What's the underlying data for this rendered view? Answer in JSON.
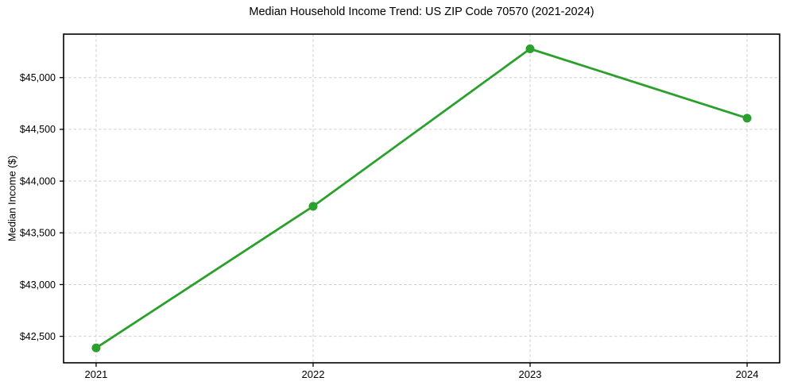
{
  "title": "Median Household Income Trend: US ZIP Code 70570 (2021-2024)",
  "chart_data": {
    "type": "line",
    "title": "Median Household Income Trend: US ZIP Code 70570 (2021-2024)",
    "xlabel": "",
    "ylabel": "Median Income ($)",
    "x": [
      2021,
      2022,
      2023,
      2024
    ],
    "series": [
      {
        "name": "Median household income",
        "values": [
          42388,
          43756,
          45278,
          44608
        ],
        "color": "#2ca02c",
        "marker": "circle"
      }
    ],
    "xlim": [
      2020.85,
      2024.15
    ],
    "ylim": [
      42244,
      45420
    ],
    "xticks": [
      2021,
      2022,
      2023,
      2024
    ],
    "xtick_labels": [
      "2021",
      "2022",
      "2023",
      "2024"
    ],
    "yticks": [
      42500,
      43000,
      43500,
      44000,
      44500,
      45000
    ],
    "ytick_labels": [
      "$42,500",
      "$43,000",
      "$43,500",
      "$44,000",
      "$44,500",
      "$45,000"
    ],
    "grid": true,
    "grid_style": "dashed",
    "legend": false
  },
  "colors": {
    "line": "#2ca02c",
    "grid": "#cfcfcf",
    "frame": "#000000",
    "background": "#ffffff",
    "text": "#000000"
  }
}
